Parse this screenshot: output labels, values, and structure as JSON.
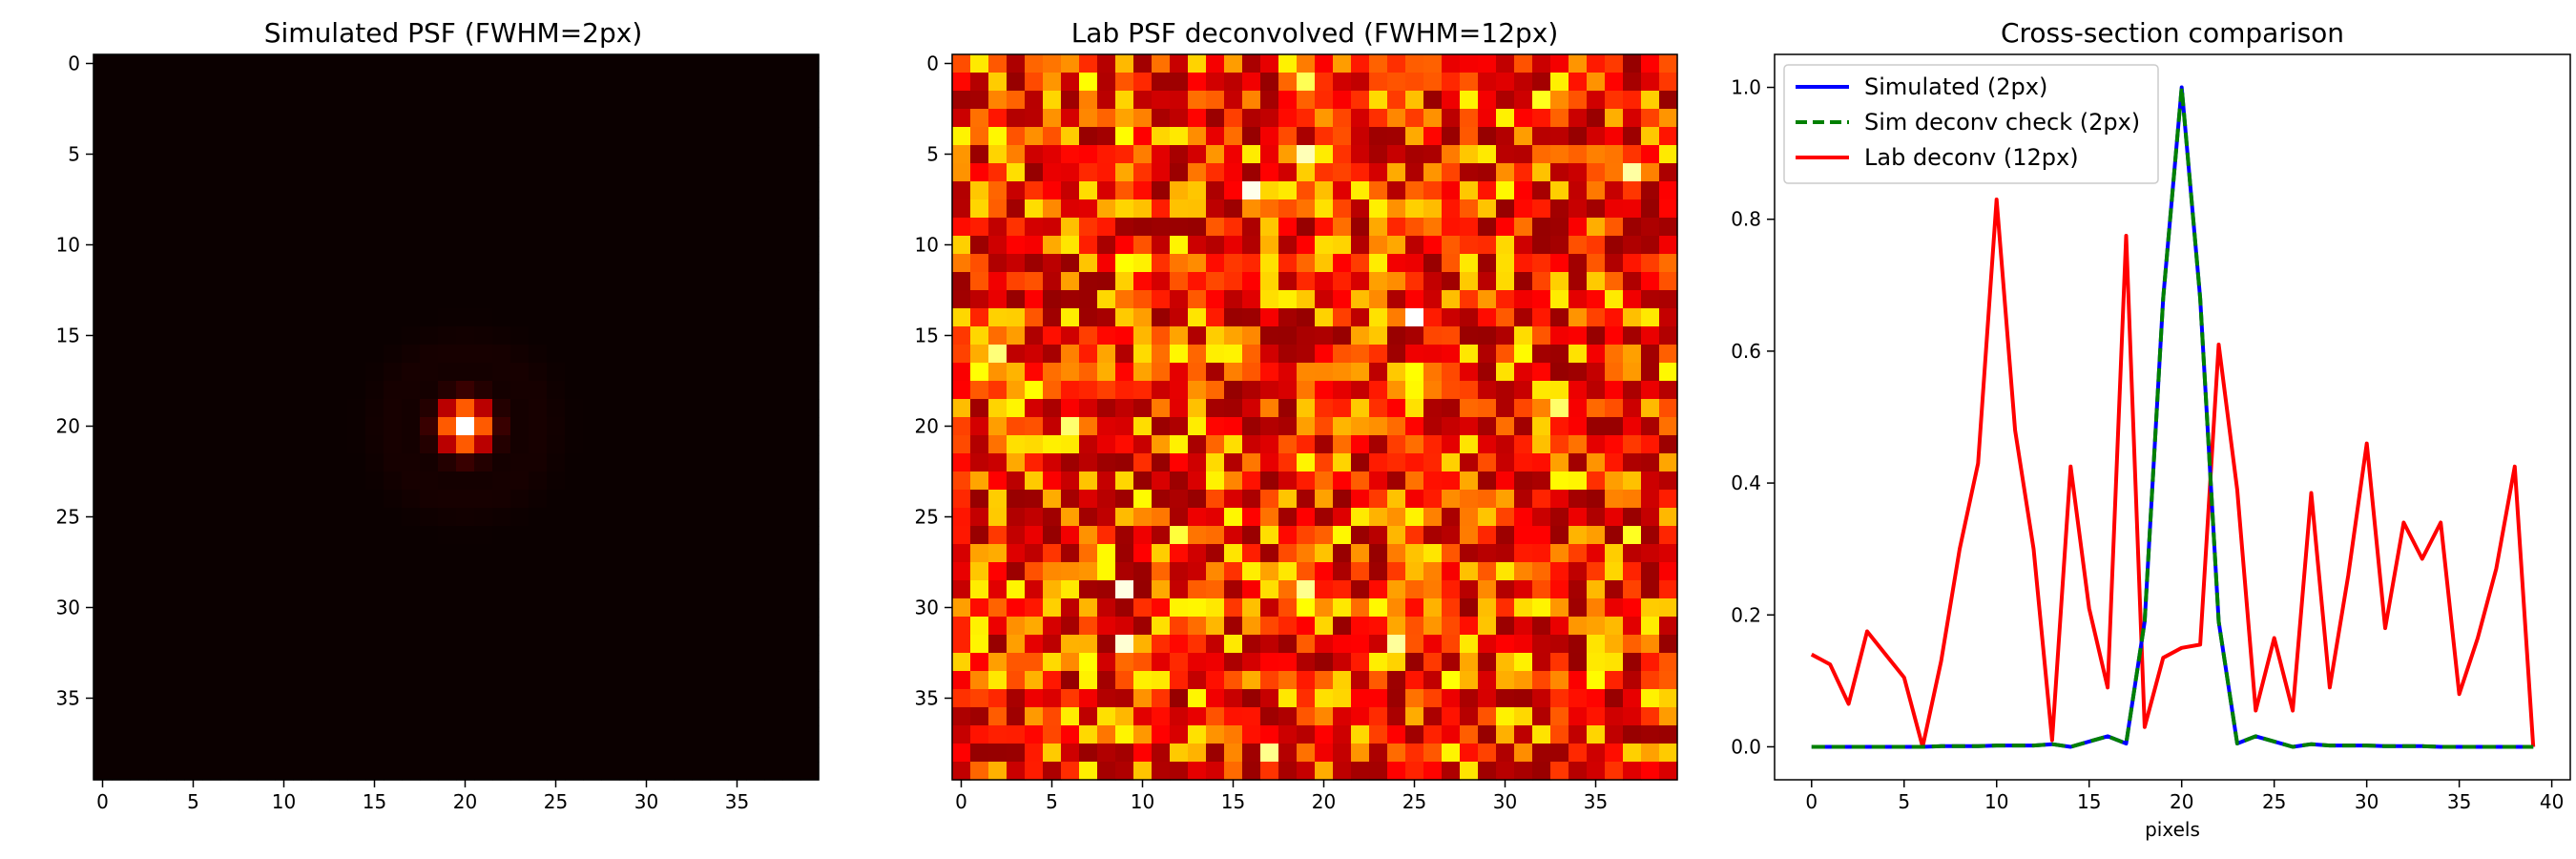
{
  "chart_data": [
    {
      "type": "heatmap",
      "title": "Simulated PSF (FWHM=2px)",
      "colormap": "hot",
      "grid": false,
      "size": 40,
      "xlim": [
        -0.5,
        39.5
      ],
      "ylim": [
        39.5,
        -0.5
      ],
      "xticks": [
        0,
        5,
        10,
        15,
        20,
        25,
        30,
        35
      ],
      "yticks": [
        0,
        5,
        10,
        15,
        20,
        25,
        30,
        35
      ],
      "center": [
        20,
        20
      ],
      "fwhm": 2,
      "peak": 1.0
    },
    {
      "type": "heatmap",
      "title": "Lab PSF deconvolved (FWHM=12px)",
      "colormap": "hot",
      "grid": false,
      "size": 40,
      "xlim": [
        -0.5,
        39.5
      ],
      "ylim": [
        39.5,
        -0.5
      ],
      "xticks": [
        0,
        5,
        10,
        15,
        20,
        25,
        30,
        35
      ],
      "yticks": [
        0,
        5,
        10,
        15,
        20,
        25,
        30,
        35
      ],
      "value_range": [
        0,
        1
      ],
      "fwhm": 12
    },
    {
      "type": "line",
      "title": "Cross-section comparison",
      "xlabel": "pixels",
      "ylabel": "",
      "xlim": [
        -2,
        41
      ],
      "ylim": [
        -0.05,
        1.05
      ],
      "xticks": [
        0,
        5,
        10,
        15,
        20,
        25,
        30,
        35,
        40
      ],
      "yticks": [
        0.0,
        0.2,
        0.4,
        0.6,
        0.8,
        1.0
      ],
      "grid": false,
      "legend_position": "top-left",
      "x": [
        0,
        1,
        2,
        3,
        4,
        5,
        6,
        7,
        8,
        9,
        10,
        11,
        12,
        13,
        14,
        15,
        16,
        17,
        18,
        19,
        20,
        21,
        22,
        23,
        24,
        25,
        26,
        27,
        28,
        29,
        30,
        31,
        32,
        33,
        34,
        35,
        36,
        37,
        38,
        39
      ],
      "series": [
        {
          "name": "Simulated (2px)",
          "color": "#0000ff",
          "style": "solid",
          "values": [
            0,
            0,
            0,
            0,
            0,
            0,
            0,
            0.001,
            0.001,
            0.001,
            0.002,
            0.002,
            0.002,
            0.004,
            0,
            0.008,
            0.016,
            0.005,
            0.19,
            0.68,
            1.0,
            0.68,
            0.19,
            0.005,
            0.016,
            0.008,
            0,
            0.004,
            0.002,
            0.002,
            0.002,
            0.001,
            0.001,
            0.001,
            0,
            0,
            0,
            0,
            0,
            0
          ]
        },
        {
          "name": "Sim deconv check (2px)",
          "color": "#008000",
          "style": "dashed",
          "values": [
            0,
            0,
            0,
            0,
            0,
            0,
            0,
            0.001,
            0.001,
            0.001,
            0.002,
            0.002,
            0.002,
            0.004,
            0,
            0.008,
            0.016,
            0.005,
            0.19,
            0.68,
            1.0,
            0.68,
            0.19,
            0.005,
            0.016,
            0.008,
            0,
            0.004,
            0.002,
            0.002,
            0.002,
            0.001,
            0.001,
            0.001,
            0,
            0,
            0,
            0,
            0,
            0
          ]
        },
        {
          "name": "Lab deconv (12px)",
          "color": "#ff0000",
          "style": "solid",
          "values": [
            0.14,
            0.125,
            0.065,
            0.175,
            0.14,
            0.105,
            0.0,
            0.13,
            0.3,
            0.43,
            0.83,
            0.48,
            0.3,
            0.01,
            0.425,
            0.21,
            0.09,
            0.775,
            0.03,
            0.135,
            0.15,
            0.155,
            0.61,
            0.39,
            0.055,
            0.165,
            0.055,
            0.385,
            0.09,
            0.26,
            0.46,
            0.18,
            0.34,
            0.285,
            0.34,
            0.08,
            0.165,
            0.27,
            0.425,
            0.0
          ]
        }
      ]
    }
  ]
}
